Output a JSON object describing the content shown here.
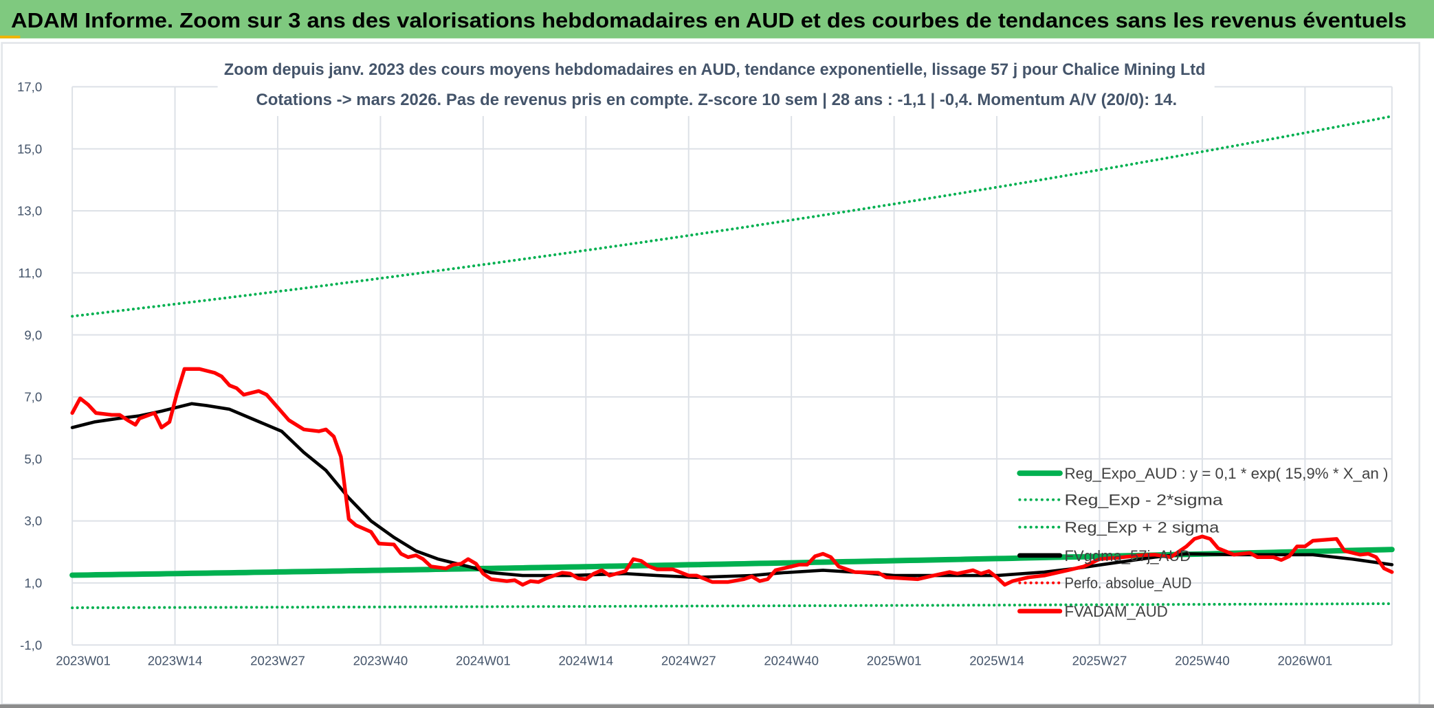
{
  "header": {
    "title": "ADAM Informe. Zoom sur 3 ans des valorisations hebdomadaires en AUD et des courbes de tendances sans les revenus éventuels"
  },
  "colors": {
    "header_bg": "#7fc97f",
    "reg_expo": "#00b050",
    "sigma": "#00b050",
    "fvgdma": "#000000",
    "fvadam": "#ff0000",
    "perfo": "#ff0000",
    "grid": "#dde1e7"
  },
  "chart_data": {
    "type": "line",
    "title": "Zoom depuis janv. 2023 des cours moyens hebdomadaires en AUD, tendance exponentielle, lissage 57 j pour Chalice Mining Ltd",
    "subtitle": "Cotations -> mars 2026. Pas de revenus pris en compte. Z-score 10 sem | 28 ans : -1,1 | -0,4. Momentum A/V (20/0): 14.",
    "xlabel": "",
    "ylabel": "",
    "x_unit": "weeks since 2023W01",
    "xlim": [
      0,
      167
    ],
    "ylim": [
      -1,
      17
    ],
    "grid": true,
    "legend_position": "bottom-right",
    "y_ticks": [
      "17,0",
      "15,0",
      "13,0",
      "11,0",
      "9,0",
      "7,0",
      "5,0",
      "3,0",
      "1,0",
      "-1,0"
    ],
    "y_tick_values": [
      17,
      15,
      13,
      11,
      9,
      7,
      5,
      3,
      1,
      -1
    ],
    "x_ticks": [
      "2023W01",
      "2023W14",
      "2023W27",
      "2023W40",
      "2024W01",
      "2024W14",
      "2024W27",
      "2024W40",
      "2025W01",
      "2025W14",
      "2025W27",
      "2025W40",
      "2026W01"
    ],
    "x_tick_values": [
      0,
      13,
      26,
      39,
      52,
      65,
      78,
      91,
      104,
      117,
      130,
      143,
      156
    ],
    "series": [
      {
        "name": "Reg_Expo_AUD : y = 0,1 * exp( 15,9% *  X_an )",
        "style": "solid-thick",
        "color": "#00b050",
        "start": 1.25,
        "end": 2.08
      },
      {
        "name": "Reg_Exp - 2*sigma",
        "style": "dotted",
        "color": "#00b050",
        "start": 0.2,
        "end": 0.333
      },
      {
        "name": "Reg_Exp + 2 sigma",
        "style": "dotted",
        "color": "#00b050",
        "start": 9.6,
        "end": 16.05
      },
      {
        "name": "FVgdma_57j_AUD",
        "style": "solid",
        "color": "#000000",
        "points": [
          [
            0,
            6.01
          ],
          [
            2.8,
            6.19
          ],
          [
            5.7,
            6.3
          ],
          [
            8.5,
            6.39
          ],
          [
            11.3,
            6.54
          ],
          [
            15.1,
            6.78
          ],
          [
            17,
            6.72
          ],
          [
            19.9,
            6.6
          ],
          [
            22.7,
            6.3
          ],
          [
            26.5,
            5.89
          ],
          [
            29.3,
            5.21
          ],
          [
            32.1,
            4.63
          ],
          [
            35,
            3.74
          ],
          [
            37.8,
            3.0
          ],
          [
            40.7,
            2.47
          ],
          [
            43.5,
            2.03
          ],
          [
            46.3,
            1.77
          ],
          [
            50.1,
            1.53
          ],
          [
            53,
            1.33
          ],
          [
            57,
            1.24
          ],
          [
            63,
            1.24
          ],
          [
            70,
            1.3
          ],
          [
            74,
            1.24
          ],
          [
            79,
            1.18
          ],
          [
            86,
            1.24
          ],
          [
            90,
            1.33
          ],
          [
            95,
            1.41
          ],
          [
            100,
            1.33
          ],
          [
            104,
            1.24
          ],
          [
            111,
            1.24
          ],
          [
            117,
            1.24
          ],
          [
            123,
            1.35
          ],
          [
            127,
            1.47
          ],
          [
            132,
            1.65
          ],
          [
            137,
            1.83
          ],
          [
            141,
            1.94
          ],
          [
            147,
            1.91
          ],
          [
            153,
            1.91
          ],
          [
            157,
            1.91
          ],
          [
            162,
            1.77
          ],
          [
            167,
            1.59
          ]
        ]
      },
      {
        "name": "Perfo. absolue_AUD",
        "style": "dotted",
        "color": "#ff0000",
        "points": []
      },
      {
        "name": "FVADAM_AUD",
        "style": "solid-thick",
        "color": "#ff0000",
        "points": [
          [
            0,
            6.48
          ],
          [
            1,
            6.95
          ],
          [
            2,
            6.75
          ],
          [
            3,
            6.48
          ],
          [
            5,
            6.42
          ],
          [
            6,
            6.42
          ],
          [
            7,
            6.25
          ],
          [
            8,
            6.1
          ],
          [
            8.5,
            6.3
          ],
          [
            10.4,
            6.48
          ],
          [
            11.3,
            6.01
          ],
          [
            12.3,
            6.19
          ],
          [
            13.2,
            7.07
          ],
          [
            14.2,
            7.9
          ],
          [
            16.1,
            7.9
          ],
          [
            18,
            7.78
          ],
          [
            18.9,
            7.66
          ],
          [
            19.9,
            7.37
          ],
          [
            20.8,
            7.28
          ],
          [
            21.7,
            7.07
          ],
          [
            23.6,
            7.19
          ],
          [
            24.6,
            7.07
          ],
          [
            27.4,
            6.25
          ],
          [
            29.3,
            5.95
          ],
          [
            31.2,
            5.89
          ],
          [
            32.1,
            5.95
          ],
          [
            33.1,
            5.72
          ],
          [
            34,
            5.07
          ],
          [
            35,
            3.06
          ],
          [
            35.9,
            2.86
          ],
          [
            37.8,
            2.65
          ],
          [
            38.8,
            2.27
          ],
          [
            40.7,
            2.24
          ],
          [
            41.6,
            1.94
          ],
          [
            42.5,
            1.83
          ],
          [
            43.5,
            1.89
          ],
          [
            44.4,
            1.77
          ],
          [
            45.4,
            1.53
          ],
          [
            47.3,
            1.47
          ],
          [
            48.2,
            1.59
          ],
          [
            49.2,
            1.62
          ],
          [
            50.1,
            1.77
          ],
          [
            51.1,
            1.62
          ],
          [
            52,
            1.3
          ],
          [
            53,
            1.12
          ],
          [
            55,
            1.06
          ],
          [
            56,
            1.09
          ],
          [
            57,
            0.94
          ],
          [
            58,
            1.06
          ],
          [
            59,
            1.03
          ],
          [
            60,
            1.15
          ],
          [
            62,
            1.33
          ],
          [
            63,
            1.3
          ],
          [
            64,
            1.15
          ],
          [
            65,
            1.12
          ],
          [
            66,
            1.3
          ],
          [
            67,
            1.41
          ],
          [
            68,
            1.24
          ],
          [
            70,
            1.38
          ],
          [
            71,
            1.77
          ],
          [
            72,
            1.71
          ],
          [
            73,
            1.53
          ],
          [
            74,
            1.44
          ],
          [
            76,
            1.44
          ],
          [
            78,
            1.24
          ],
          [
            79,
            1.24
          ],
          [
            81,
            1.03
          ],
          [
            83,
            1.03
          ],
          [
            85,
            1.12
          ],
          [
            86,
            1.21
          ],
          [
            87,
            1.06
          ],
          [
            88,
            1.12
          ],
          [
            89,
            1.41
          ],
          [
            92,
            1.59
          ],
          [
            93,
            1.59
          ],
          [
            94,
            1.86
          ],
          [
            95,
            1.94
          ],
          [
            96,
            1.83
          ],
          [
            97,
            1.53
          ],
          [
            99,
            1.35
          ],
          [
            102,
            1.33
          ],
          [
            103,
            1.18
          ],
          [
            107,
            1.12
          ],
          [
            109,
            1.24
          ],
          [
            111,
            1.35
          ],
          [
            112,
            1.3
          ],
          [
            114,
            1.41
          ],
          [
            115,
            1.3
          ],
          [
            116,
            1.38
          ],
          [
            117,
            1.18
          ],
          [
            118,
            0.94
          ],
          [
            119,
            1.06
          ],
          [
            121,
            1.18
          ],
          [
            123,
            1.24
          ],
          [
            126,
            1.41
          ],
          [
            128,
            1.53
          ],
          [
            130,
            1.77
          ],
          [
            133,
            1.83
          ],
          [
            135,
            1.89
          ],
          [
            137,
            1.91
          ],
          [
            139,
            1.83
          ],
          [
            141,
            2.18
          ],
          [
            142,
            2.42
          ],
          [
            143,
            2.5
          ],
          [
            144,
            2.42
          ],
          [
            145,
            2.12
          ],
          [
            147,
            1.91
          ],
          [
            149,
            1.97
          ],
          [
            150,
            1.83
          ],
          [
            152,
            1.83
          ],
          [
            153,
            1.74
          ],
          [
            154,
            1.86
          ],
          [
            155,
            2.18
          ],
          [
            156,
            2.18
          ],
          [
            157,
            2.36
          ],
          [
            160,
            2.42
          ],
          [
            161,
            2.03
          ],
          [
            163,
            1.91
          ],
          [
            164,
            1.94
          ],
          [
            165,
            1.83
          ],
          [
            166,
            1.47
          ],
          [
            167,
            1.35
          ]
        ]
      }
    ]
  }
}
